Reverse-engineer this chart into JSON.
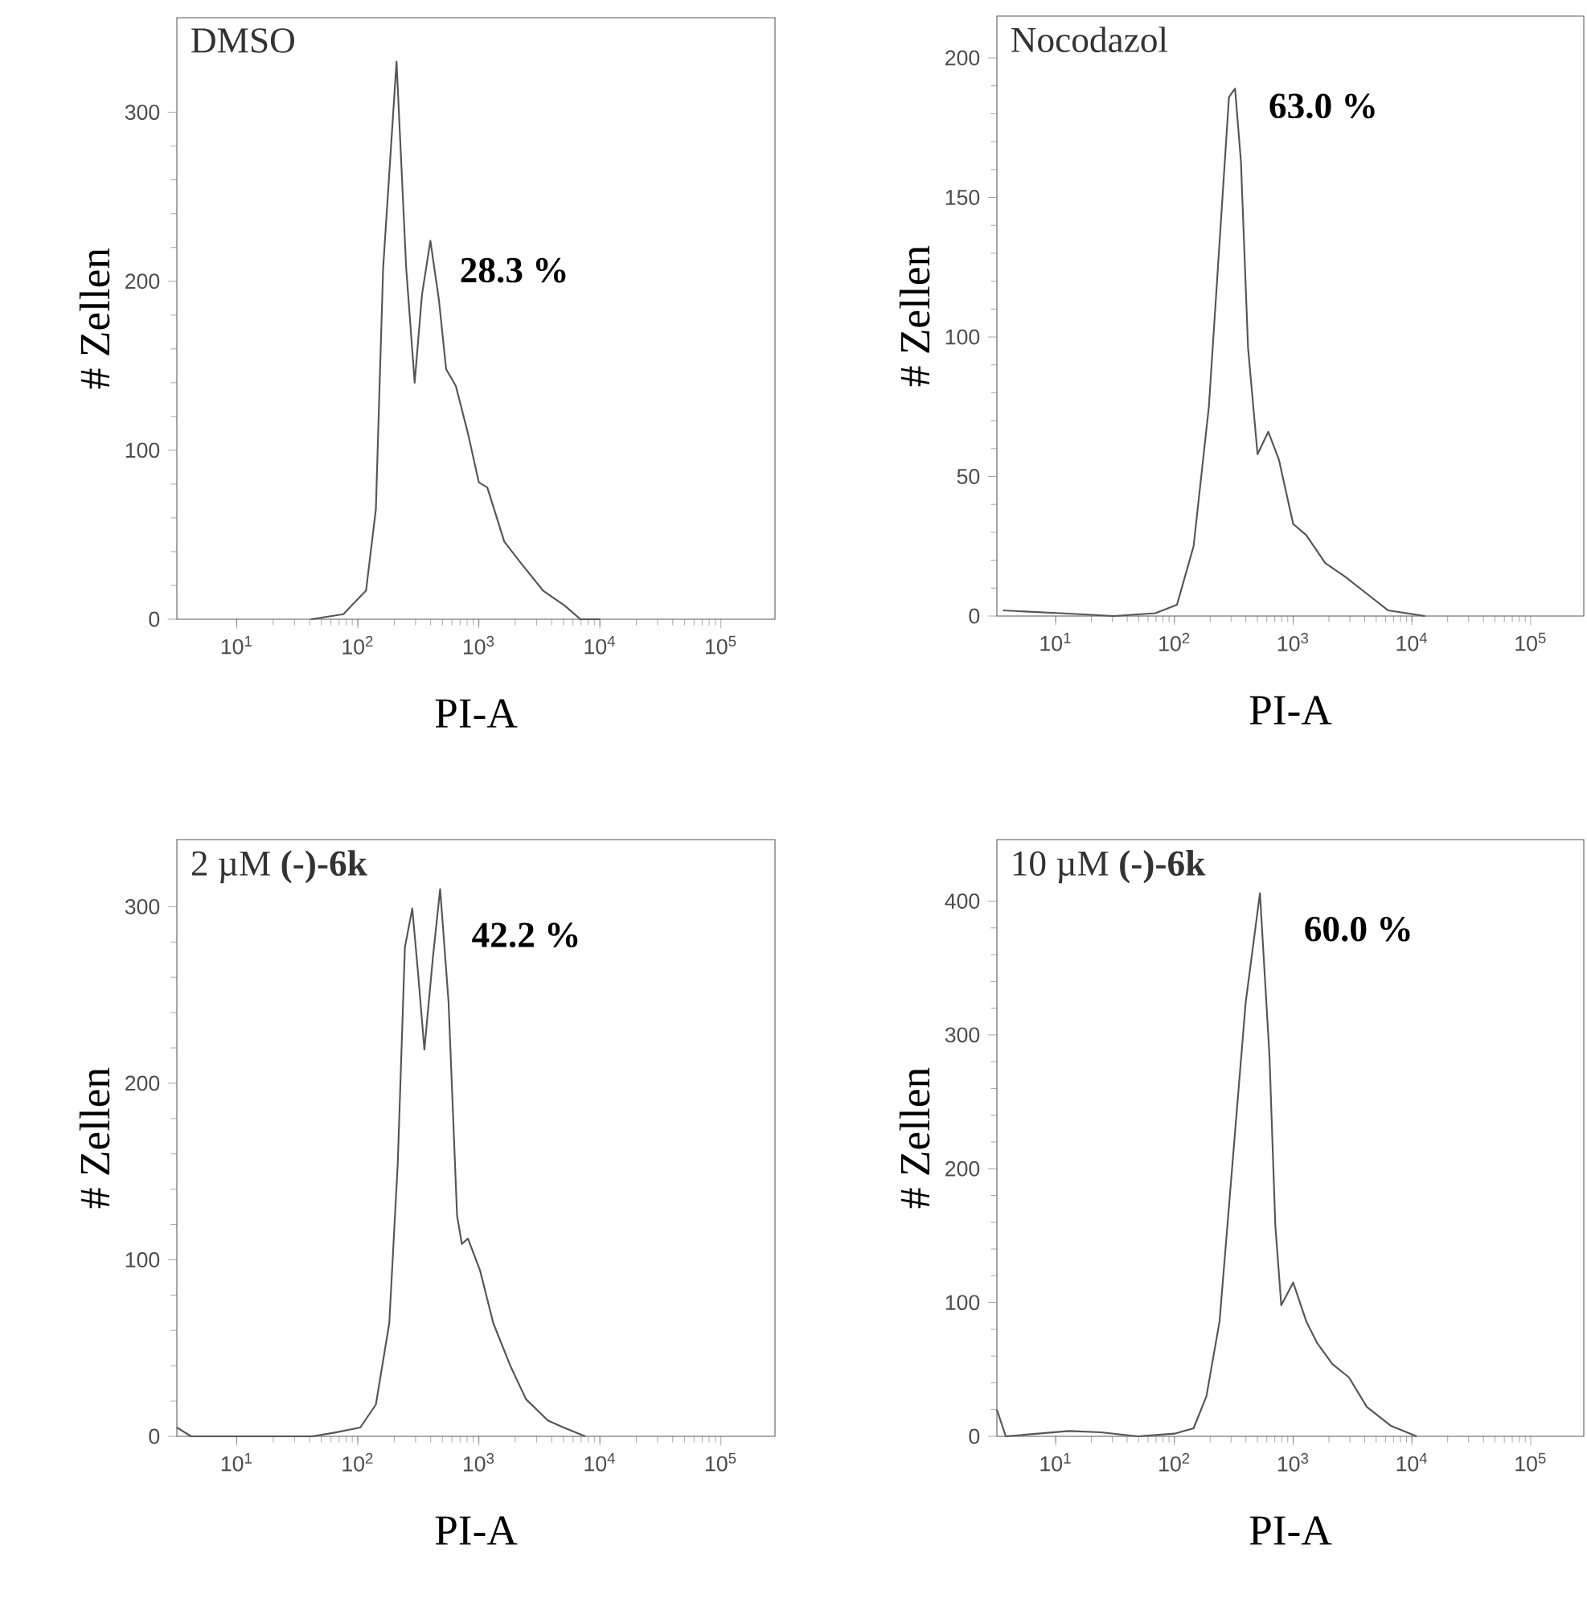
{
  "chart_data": [
    {
      "type": "line",
      "title": "DMSO",
      "xlabel": "PI-A",
      "ylabel": "# Zellen",
      "annotations": [
        "28.3 %"
      ],
      "log": "x",
      "marker": "none",
      "line_style": "solid",
      "series": [
        {
          "color": "#555555",
          "x": [
            41,
            76,
            117,
            141,
            162,
            209,
            251,
            295,
            339,
            398,
            468,
            537,
            646,
            813,
            1000,
            1175,
            1622,
            2239,
            3388,
            5129,
            6918,
            10000
          ],
          "values": [
            0,
            3,
            17,
            65,
            208,
            330,
            208,
            140,
            192,
            224,
            189,
            148,
            138,
            110,
            81,
            78,
            46,
            33,
            17,
            8,
            0,
            0
          ]
        }
      ],
      "xlim": [
        3.2,
        280000
      ],
      "ylim": [
        0,
        356
      ],
      "yticks": [
        0,
        100,
        200,
        300
      ],
      "xticks": [
        {
          "value": 10,
          "label": "10$^{1}$"
        },
        {
          "value": 100,
          "label": "10$^{2}$"
        },
        {
          "value": 1000,
          "label": "10$^{3}$"
        },
        {
          "value": 10000,
          "label": "10$^{4}$"
        },
        {
          "value": 100000,
          "label": "10$^{5}$"
        }
      ]
    },
    {
      "type": "line",
      "title": "Nocodazol",
      "xlabel": "PI-A",
      "ylabel": "# Zellen",
      "annotations": [
        "63.0 %"
      ],
      "log": "x",
      "marker": "none",
      "line_style": "solid",
      "series": [
        {
          "color": "#555555",
          "x": [
            3.6,
            11,
            31,
            69,
            105,
            145,
            195,
            240,
            288,
            324,
            363,
            417,
            501,
            617,
            759,
            1000,
            1288,
            1862,
            2754,
            4169,
            6310,
            12882
          ],
          "values": [
            2,
            1,
            0,
            1,
            4,
            25,
            75,
            134,
            186,
            189,
            163,
            96,
            58,
            66,
            56,
            33,
            29,
            19,
            14,
            8,
            2,
            0
          ]
        }
      ],
      "xlim": [
        3.2,
        280000
      ],
      "ylim": [
        0,
        215
      ],
      "yticks": [
        0,
        50,
        100,
        150,
        200
      ],
      "xticks": [
        {
          "value": 10,
          "label": "10$^{1}$"
        },
        {
          "value": 100,
          "label": "10$^{2}$"
        },
        {
          "value": 1000,
          "label": "10$^{3}$"
        },
        {
          "value": 10000,
          "label": "10$^{4}$"
        },
        {
          "value": 100000,
          "label": "10$^{5}$"
        }
      ]
    },
    {
      "type": "line",
      "title": "2 µM **(-)-6k**",
      "xlabel": "PI-A",
      "ylabel": "# Zellen",
      "annotations": [
        "42.2 %"
      ],
      "log": "x",
      "marker": "none",
      "line_style": "solid",
      "series": [
        {
          "color": "#555555",
          "x": [
            3.2,
            4.2,
            42,
            63,
            105,
            141,
            182,
            214,
            245,
            282,
            316,
            355,
            417,
            479,
            562,
            661,
            724,
            813,
            1023,
            1318,
            1820,
            2455,
            3715,
            5012,
            7586
          ],
          "values": [
            5,
            0,
            0,
            2,
            5,
            18,
            64,
            155,
            277,
            299,
            261,
            219,
            271,
            310,
            246,
            125,
            109,
            112,
            94,
            64,
            40,
            21,
            9,
            5,
            0
          ]
        }
      ],
      "xlim": [
        3.2,
        280000
      ],
      "ylim": [
        0,
        338
      ],
      "yticks": [
        0,
        100,
        200,
        300
      ],
      "xticks": [
        {
          "value": 10,
          "label": "10$^{1}$"
        },
        {
          "value": 100,
          "label": "10$^{2}$"
        },
        {
          "value": 1000,
          "label": "10$^{3}$"
        },
        {
          "value": 10000,
          "label": "10$^{4}$"
        },
        {
          "value": 100000,
          "label": "10$^{5}$"
        }
      ]
    },
    {
      "type": "line",
      "title": "10 µM **(-)-6k**",
      "xlabel": "PI-A",
      "ylabel": "# Zellen",
      "annotations": [
        "60.0 %"
      ],
      "log": "x",
      "marker": "none",
      "line_style": "solid",
      "series": [
        {
          "color": "#555555",
          "x": [
            3.2,
            3.8,
            13,
            24,
            49,
            100,
            145,
            186,
            240,
            309,
            398,
            525,
            631,
            708,
            794,
            1000,
            1288,
            1585,
            2138,
            2951,
            4169,
            6607,
            10965
          ],
          "values": [
            20,
            0,
            4,
            3,
            0,
            2,
            6,
            30,
            86,
            205,
            324,
            406,
            285,
            157,
            98,
            115,
            86,
            70,
            54,
            44,
            22,
            8,
            0
          ]
        }
      ],
      "xlim": [
        3.2,
        280000
      ],
      "ylim": [
        0,
        446
      ],
      "yticks": [
        0,
        100,
        200,
        300,
        400
      ],
      "xticks": [
        {
          "value": 10,
          "label": "10$^{1}$"
        },
        {
          "value": 100,
          "label": "10$^{2}$"
        },
        {
          "value": 1000,
          "label": "10$^{3}$"
        },
        {
          "value": 10000,
          "label": "10$^{4}$"
        },
        {
          "value": 100000,
          "label": "10$^{5}$"
        }
      ]
    }
  ]
}
